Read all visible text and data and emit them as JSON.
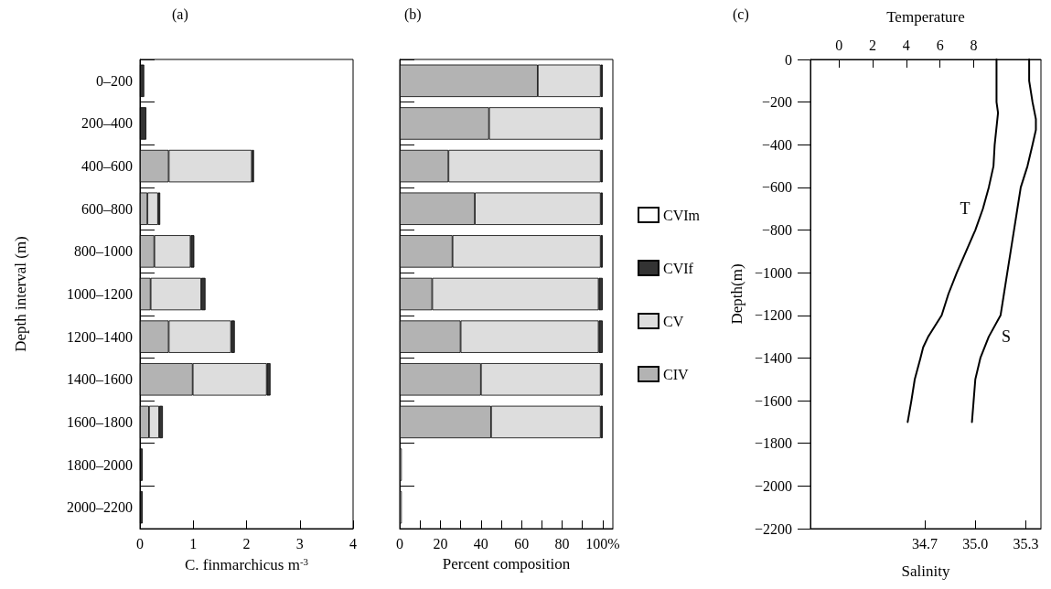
{
  "chart_data": [
    {
      "type": "bar",
      "title": "(a)",
      "orientation": "horizontal",
      "stacked": true,
      "xlabel": "C. finmarchicus m$^{-3}$",
      "ylabel": "Depth interval (m)",
      "categories": [
        "0–200",
        "200–400",
        "400–600",
        "600–800",
        "800–1000",
        "1000–1200",
        "1200–1400",
        "1400–1600",
        "1600–1800",
        "1800–2000",
        "2000–2200"
      ],
      "xlim": [
        0,
        4
      ],
      "xticks": [
        0,
        1,
        2,
        3,
        4
      ],
      "grid": false,
      "legend": false,
      "series": [
        {
          "color": "#b3b3b3",
          "values": [
            0,
            0,
            0.54,
            0.14,
            0.27,
            0.2,
            0.54,
            0.99,
            0.17,
            0,
            0
          ]
        },
        {
          "color": "#dddddd",
          "values": [
            0,
            0,
            1.56,
            0.2,
            0.68,
            0.95,
            1.17,
            1.39,
            0.19,
            0,
            0
          ]
        },
        {
          "color": "#333333",
          "values": [
            0.08,
            0.12,
            0.04,
            0.04,
            0.07,
            0.08,
            0.07,
            0.07,
            0.07,
            0.05,
            0.05
          ]
        },
        {
          "color": "#ffffff",
          "values": [
            0,
            0,
            0,
            0,
            0,
            0,
            0,
            0,
            0,
            0,
            0
          ]
        }
      ]
    },
    {
      "type": "bar",
      "title": "(b)",
      "orientation": "horizontal",
      "stacked": true,
      "xlabel": "Percent composition",
      "categories": [
        null,
        null,
        null,
        null,
        null,
        null,
        null,
        null,
        null,
        null,
        null
      ],
      "xlim": [
        0,
        105
      ],
      "xticks": [
        0,
        {
          "value": 10,
          "label": null
        },
        20,
        {
          "value": 30,
          "label": null
        },
        40,
        {
          "value": 50,
          "label": null
        },
        60,
        {
          "value": 70,
          "label": null
        },
        80,
        {
          "value": 90,
          "label": null
        },
        {
          "value": 100,
          "label": "100%"
        }
      ],
      "tick_labels": "x",
      "grid": false,
      "legend": "right",
      "series": [
        {
          "name": "CIV",
          "color": "#b3b3b3",
          "values": [
            68,
            44,
            24,
            37,
            26,
            16,
            30,
            40,
            45,
            0,
            0
          ]
        },
        {
          "name": "CV",
          "color": "#dddddd",
          "values": [
            31,
            55,
            75,
            62,
            73,
            82,
            68,
            59,
            54,
            0,
            0
          ]
        },
        {
          "name": "CVIf",
          "color": "#333333",
          "values": [
            1,
            1,
            1,
            1,
            1,
            2,
            2,
            1,
            1,
            0,
            0
          ]
        },
        {
          "name": "CVIm",
          "color": "#ffffff",
          "values": [
            0,
            0,
            0,
            0,
            0,
            0,
            0,
            0,
            0,
            1,
            1
          ]
        }
      ]
    },
    {
      "type": "line",
      "title": "(c)",
      "xlabel": "Salinity",
      "x2label": "Temperature",
      "ylabel": "Depth(m)",
      "xlim": [
        34.02,
        35.39
      ],
      "xticks": [
        34.7,
        {
          "value": 35,
          "label": "35.0"
        },
        35.3
      ],
      "x2lim": [
        -1.7,
        12
      ],
      "x2ticks": [
        0,
        2,
        4,
        6,
        8
      ],
      "ylim": [
        -2200,
        0
      ],
      "yticks": [
        -2200,
        -2000,
        -1800,
        -1600,
        -1400,
        -1200,
        -1000,
        -800,
        -600,
        -400,
        -200,
        0
      ],
      "grid": false,
      "legend": false,
      "series": [
        {
          "axis": "x2",
          "name": "T",
          "color": "#000000",
          "x": [
            9.36,
            9.36,
            9.45,
            9.25,
            9.18,
            8.9,
            8.55,
            8.1,
            7.55,
            7.0,
            6.5,
            6.1,
            5.3,
            5.0,
            4.84,
            4.5,
            4.3,
            4.08
          ],
          "values": [
            0,
            -200,
            -250,
            -400,
            -500,
            -600,
            -700,
            -800,
            -900,
            -1000,
            -1100,
            -1200,
            -1300,
            -1350,
            -1400,
            -1500,
            -1600,
            -1700
          ]
        },
        {
          "name": "S",
          "color": "#000000",
          "x": [
            35.32,
            35.32,
            35.34,
            35.36,
            35.36,
            35.34,
            35.31,
            35.27,
            35.25,
            35.23,
            35.21,
            35.19,
            35.17,
            35.15,
            35.08,
            35.03,
            35.0,
            34.99,
            34.98
          ],
          "values": [
            0,
            -100,
            -200,
            -280,
            -330,
            -400,
            -500,
            -600,
            -700,
            -800,
            -900,
            -1000,
            -1100,
            -1200,
            -1300,
            -1400,
            -1500,
            -1600,
            -1700
          ]
        }
      ]
    }
  ]
}
